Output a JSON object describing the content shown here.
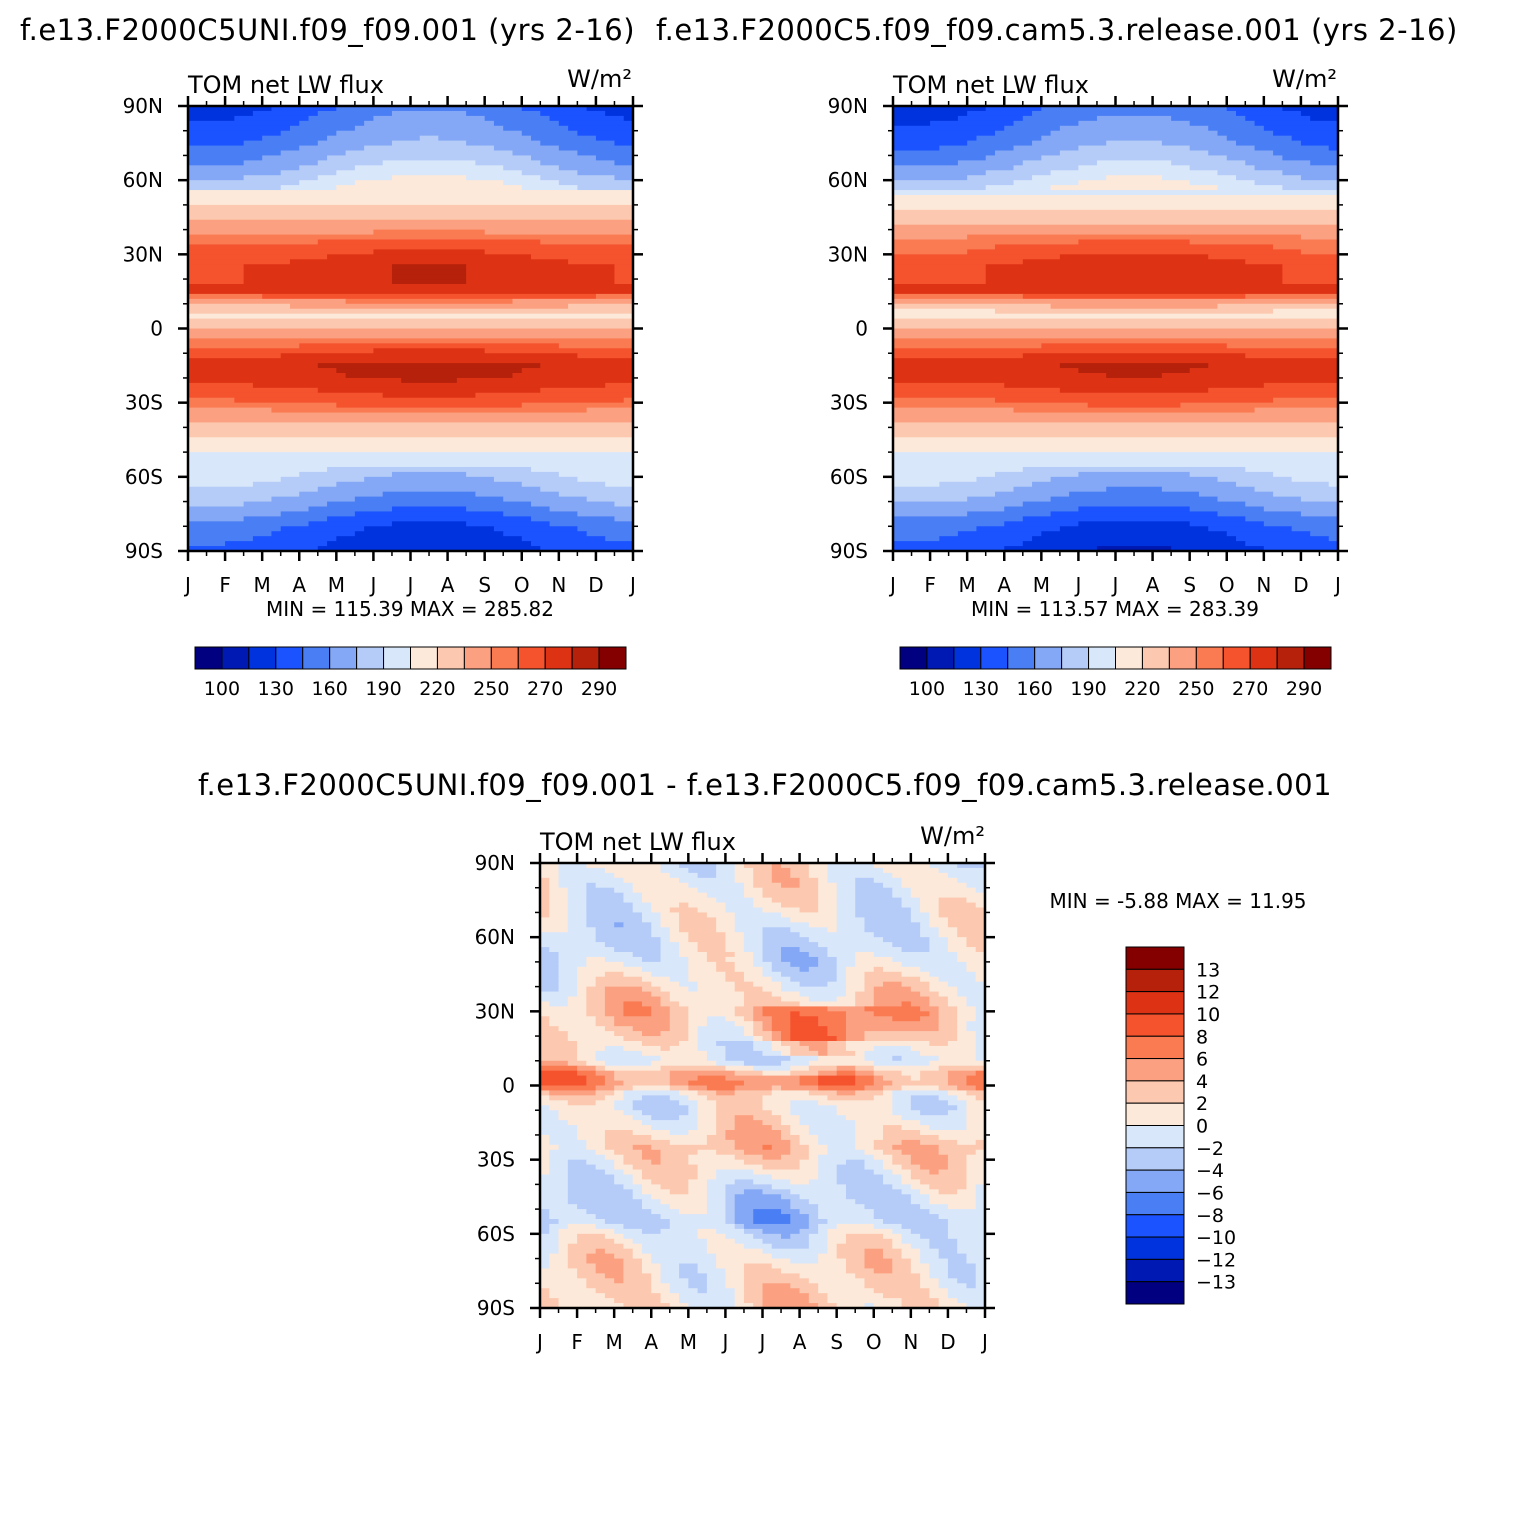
{
  "colors": [
    "#000080",
    "#0019b3",
    "#0033dd",
    "#1a53ff",
    "#4a7ef5",
    "#84a8f5",
    "#b5ccf8",
    "#d9e7fb",
    "#fde9d9",
    "#fcc9b0",
    "#fba182",
    "#fa7a52",
    "#f4532e",
    "#dd3314",
    "#b5210b",
    "#840000"
  ],
  "chart_data": [
    {
      "type": "heatmap",
      "title": "f.e13.F2000C5UNI.f09_f09.001  (yrs 2-16)",
      "subtitle": "TOM  net  LW  flux",
      "units": "W/m²",
      "xlabel": "",
      "ylabel": "",
      "x_ticks": [
        "J",
        "F",
        "M",
        "A",
        "M",
        "J",
        "J",
        "A",
        "S",
        "O",
        "N",
        "D",
        "J"
      ],
      "y_ticks": [
        "90N",
        "60N",
        "30N",
        "0",
        "30S",
        "60S",
        "90S"
      ],
      "ylim": [
        -90,
        90
      ],
      "stats": "MIN  =  115.39  MAX  =  285.82",
      "levels": [
        100,
        115,
        130,
        145,
        160,
        175,
        190,
        205,
        220,
        235,
        250,
        260,
        270,
        280,
        290
      ],
      "level_labels": [
        "100",
        "130",
        "160",
        "190",
        "220",
        "250",
        "270",
        "290"
      ],
      "lat_profile": {
        "lat": [
          -90,
          -80,
          -70,
          -60,
          -50,
          -40,
          -30,
          -20,
          -15,
          -10,
          0,
          5,
          15,
          25,
          35,
          45,
          55,
          65,
          75,
          90
        ],
        "value": [
          128,
          140,
          165,
          185,
          205,
          230,
          262,
          278,
          280,
          270,
          240,
          210,
          275,
          275,
          260,
          230,
          205,
          180,
          160,
          140
        ]
      }
    },
    {
      "type": "heatmap",
      "title": "f.e13.F2000C5.f09_f09.cam5.3.release.001  (yrs 2-16)",
      "subtitle": "TOM  net  LW  flux",
      "units": "W/m²",
      "xlabel": "",
      "ylabel": "",
      "x_ticks": [
        "J",
        "F",
        "M",
        "A",
        "M",
        "J",
        "J",
        "A",
        "S",
        "O",
        "N",
        "D",
        "J"
      ],
      "y_ticks": [
        "90N",
        "60N",
        "30N",
        "0",
        "30S",
        "60S",
        "90S"
      ],
      "ylim": [
        -90,
        90
      ],
      "stats": "MIN  =  113.57  MAX  =  283.39",
      "levels": [
        100,
        115,
        130,
        145,
        160,
        175,
        190,
        205,
        220,
        235,
        250,
        260,
        270,
        280,
        290
      ],
      "level_labels": [
        "100",
        "130",
        "160",
        "190",
        "220",
        "250",
        "270",
        "290"
      ],
      "lat_profile": {
        "lat": [
          -90,
          -80,
          -70,
          -60,
          -50,
          -40,
          -30,
          -20,
          -15,
          -10,
          0,
          5,
          15,
          25,
          35,
          45,
          55,
          65,
          75,
          90
        ],
        "value": [
          126,
          138,
          163,
          183,
          204,
          229,
          260,
          276,
          278,
          268,
          238,
          208,
          273,
          273,
          258,
          228,
          203,
          178,
          158,
          138
        ]
      }
    },
    {
      "type": "heatmap",
      "title": "f.e13.F2000C5UNI.f09_f09.001  -  f.e13.F2000C5.f09_f09.cam5.3.release.001",
      "subtitle": "TOM  net  LW  flux",
      "units": "W/m²",
      "xlabel": "",
      "ylabel": "",
      "x_ticks": [
        "J",
        "F",
        "M",
        "A",
        "M",
        "J",
        "J",
        "A",
        "S",
        "O",
        "N",
        "D",
        "J"
      ],
      "y_ticks": [
        "90N",
        "60N",
        "30N",
        "0",
        "30S",
        "60S",
        "90S"
      ],
      "ylim": [
        -90,
        90
      ],
      "stats": "MIN  =    -5.88  MAX  =    11.95",
      "levels": [
        -13,
        -12,
        -10,
        -8,
        -6,
        -4,
        -2,
        0,
        2,
        4,
        6,
        8,
        10,
        12,
        13
      ],
      "level_labels": [
        "13",
        "12",
        "10",
        "8",
        "6",
        "4",
        "2",
        "0",
        "−2",
        "−4",
        "−6",
        "−8",
        "−10",
        "−12",
        "−13"
      ],
      "lat_profile": {
        "lat": [
          -90,
          -80,
          -70,
          -60,
          -55,
          -45,
          -35,
          -25,
          -15,
          -8,
          -3,
          0,
          5,
          10,
          20,
          30,
          40,
          50,
          60,
          70,
          80,
          90
        ],
        "value": [
          2,
          1.5,
          1,
          -1,
          -3,
          -2,
          0.5,
          3,
          1,
          0,
          2,
          6,
          5,
          0,
          1.5,
          3,
          1,
          -1,
          -1,
          0,
          0.5,
          0.5
        ]
      }
    }
  ]
}
